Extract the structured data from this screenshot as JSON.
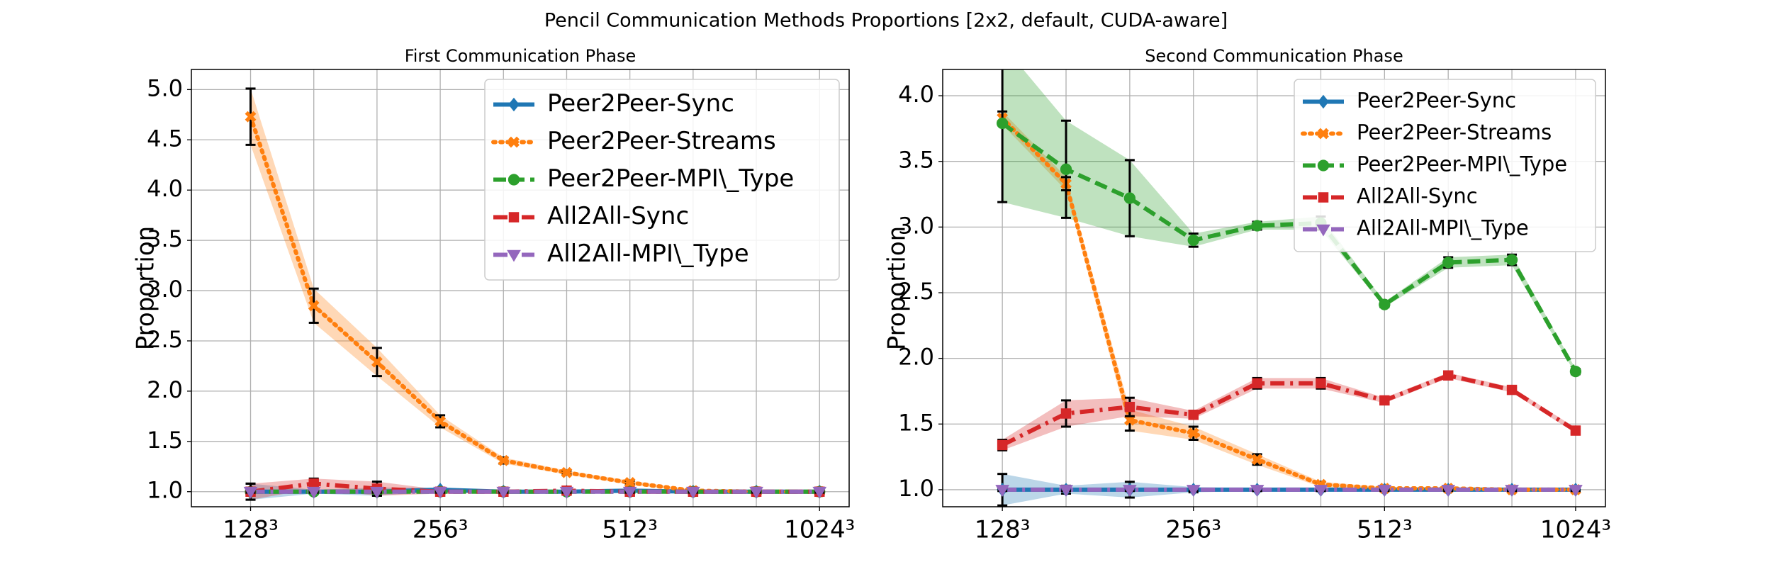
{
  "title": "Pencil Communication Methods Proportions [2x2, default, CUDA-aware]",
  "chart_data": [
    {
      "type": "line",
      "title": "First Communication Phase",
      "y_label": "Proportion",
      "categories": [
        "128³",
        null,
        null,
        "256³",
        null,
        null,
        "512³",
        null,
        null,
        "1024³"
      ],
      "ylim": [
        0.85,
        5.2
      ],
      "yticks": [
        {
          "value": 1,
          "label": "1.0"
        },
        {
          "value": 1.5,
          "label": "1.5"
        },
        {
          "value": 2,
          "label": "2.0"
        },
        {
          "value": 2.5,
          "label": "2.5"
        },
        {
          "value": 3,
          "label": "3.0"
        },
        {
          "value": 3.5,
          "label": "3.5"
        },
        {
          "value": 4,
          "label": "4.0"
        },
        {
          "value": 4.5,
          "label": "4.5"
        },
        {
          "value": 5,
          "label": "5.0"
        }
      ],
      "grid": true,
      "legend": "upper right",
      "series": [
        {
          "name": "Peer2Peer-Sync",
          "color": "#1f77b4",
          "marker": "diamond",
          "dash": "solid",
          "values": [
            1.0,
            1.0,
            1.0,
            1.02,
            1.0,
            1.0,
            1.01,
            1.0,
            1.0,
            1.0
          ],
          "errors": [
            0.08,
            0.02,
            0.04,
            0.02,
            0.01,
            0.01,
            0.01,
            0.01,
            0.01,
            0.01
          ]
        },
        {
          "name": "Peer2Peer-Streams",
          "color": "#ff7f0e",
          "marker": "x",
          "dash": "dotted",
          "values": [
            4.73,
            2.85,
            2.29,
            1.7,
            1.31,
            1.19,
            1.09,
            1.01,
            1.0,
            1.0
          ],
          "errors": [
            0.28,
            0.17,
            0.14,
            0.06,
            0.03,
            0.02,
            0.02,
            0.01,
            0.01,
            0.01
          ]
        },
        {
          "name": "Peer2Peer-MPI\\_Type",
          "color": "#2ca02c",
          "marker": "circle",
          "dash": "dashed",
          "values": [
            1.0,
            1.0,
            1.0,
            1.0,
            1.0,
            1.0,
            1.0,
            1.0,
            1.0,
            1.0
          ],
          "errors": [
            0.01,
            0.01,
            0.01,
            0.01,
            0.01,
            0.01,
            0.01,
            0.01,
            0.01,
            0.01
          ]
        },
        {
          "name": "All2All-Sync",
          "color": "#d62728",
          "marker": "square",
          "dash": "dashdot",
          "values": [
            1.0,
            1.08,
            1.03,
            1.0,
            1.0,
            1.01,
            1.0,
            1.0,
            1.0,
            1.0
          ],
          "errors": [
            0.08,
            0.05,
            0.07,
            0.02,
            0.01,
            0.01,
            0.01,
            0.01,
            0.01,
            0.01
          ]
        },
        {
          "name": "All2All-MPI\\_Type",
          "color": "#9467bd",
          "marker": "triangle",
          "dash": "dashdot",
          "values": [
            1.0,
            1.0,
            1.0,
            1.0,
            1.0,
            1.0,
            1.0,
            1.0,
            1.0,
            1.0
          ],
          "errors": [
            0.01,
            0.01,
            0.01,
            0.01,
            0.01,
            0.01,
            0.01,
            0.01,
            0.01,
            0.01
          ]
        }
      ]
    },
    {
      "type": "line",
      "title": "Second Communication Phase",
      "y_label": "Proportion",
      "categories": [
        "128³",
        null,
        null,
        "256³",
        null,
        null,
        "512³",
        null,
        null,
        "1024³"
      ],
      "ylim": [
        0.87,
        4.2
      ],
      "yticks": [
        {
          "value": 1,
          "label": "1.0"
        },
        {
          "value": 1.5,
          "label": "1.5"
        },
        {
          "value": 2,
          "label": "2.0"
        },
        {
          "value": 2.5,
          "label": "2.5"
        },
        {
          "value": 3,
          "label": "3.0"
        },
        {
          "value": 3.5,
          "label": "3.5"
        },
        {
          "value": 4,
          "label": "4.0"
        }
      ],
      "grid": true,
      "legend": "upper right",
      "series": [
        {
          "name": "Peer2Peer-Sync",
          "color": "#1f77b4",
          "marker": "diamond",
          "dash": "solid",
          "values": [
            1.0,
            1.0,
            1.0,
            1.0,
            1.0,
            1.0,
            1.0,
            1.0,
            1.0,
            1.0
          ],
          "errors": [
            0.12,
            0.03,
            0.06,
            0.02,
            0.01,
            0.01,
            0.01,
            0.01,
            0.01,
            0.01
          ]
        },
        {
          "name": "Peer2Peer-Streams",
          "color": "#ff7f0e",
          "marker": "x",
          "dash": "dotted",
          "values": [
            3.83,
            3.33,
            1.53,
            1.43,
            1.23,
            1.04,
            1.01,
            1.01,
            1.0,
            1.0
          ],
          "errors": [
            0.05,
            0.05,
            0.08,
            0.05,
            0.04,
            0.02,
            0.01,
            0.01,
            0.01,
            0.01
          ]
        },
        {
          "name": "Peer2Peer-MPI\\_Type",
          "color": "#2ca02c",
          "marker": "circle",
          "dash": "dashed",
          "values": [
            3.79,
            3.44,
            3.22,
            2.9,
            3.01,
            3.03,
            2.41,
            2.73,
            2.75,
            1.9
          ],
          "errors": [
            0.6,
            0.37,
            0.29,
            0.05,
            0.03,
            0.05,
            0.02,
            0.04,
            0.04,
            0.02
          ]
        },
        {
          "name": "All2All-Sync",
          "color": "#d62728",
          "marker": "square",
          "dash": "dashdot",
          "values": [
            1.34,
            1.58,
            1.63,
            1.57,
            1.81,
            1.81,
            1.68,
            1.87,
            1.76,
            1.45
          ],
          "errors": [
            0.04,
            0.1,
            0.07,
            0.03,
            0.04,
            0.04,
            0.02,
            0.02,
            0.02,
            0.02
          ]
        },
        {
          "name": "All2All-MPI\\_Type",
          "color": "#9467bd",
          "marker": "triangle",
          "dash": "dashdot",
          "values": [
            1.0,
            1.0,
            1.0,
            1.0,
            1.0,
            1.0,
            1.0,
            1.0,
            1.0,
            1.0
          ],
          "errors": [
            0.01,
            0.01,
            0.01,
            0.01,
            0.01,
            0.01,
            0.01,
            0.01,
            0.01,
            0.01
          ]
        }
      ]
    }
  ]
}
